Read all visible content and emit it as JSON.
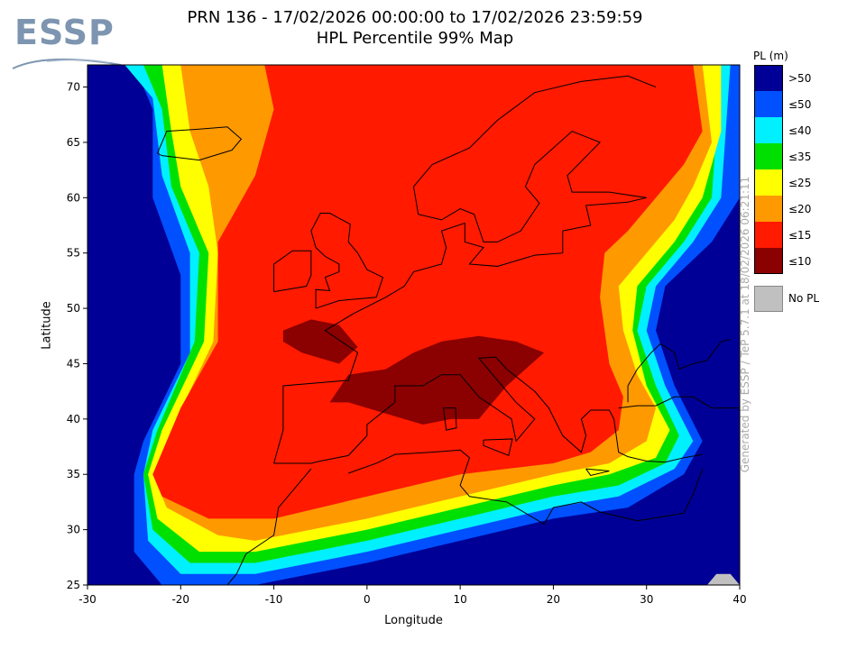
{
  "logo": {
    "text": "ESSP",
    "color": "#7d95b0"
  },
  "title": {
    "line1": "PRN 136 - 17/02/2026 00:00:00 to 17/02/2026 23:59:59",
    "line2": "HPL Percentile 99% Map"
  },
  "axes": {
    "xlabel": "Longitude",
    "ylabel": "Latitude",
    "xlim": [
      -30,
      40
    ],
    "ylim": [
      25,
      72
    ],
    "xticks": [
      -30,
      -20,
      -10,
      0,
      10,
      20,
      30,
      40
    ],
    "yticks": [
      25,
      30,
      35,
      40,
      45,
      50,
      55,
      60,
      65,
      70
    ]
  },
  "legend": {
    "title": "PL (m)",
    "items": [
      {
        "label": ">50",
        "color": "#000096"
      },
      {
        "label": "≤50",
        "color": "#0050ff"
      },
      {
        "label": "≤40",
        "color": "#00f0ff"
      },
      {
        "label": "≤35",
        "color": "#00e000"
      },
      {
        "label": "≤25",
        "color": "#ffff00"
      },
      {
        "label": "≤20",
        "color": "#ff9900"
      },
      {
        "label": "≤15",
        "color": "#ff1a00"
      },
      {
        "label": "≤10",
        "color": "#8b0000"
      }
    ],
    "no_pl": {
      "label": "No PL",
      "color": "#c0c0c0"
    }
  },
  "side_text": "Generated by ESSP / TeP 5.7.1 at 18/02/2026 06:21:11",
  "chart_data": {
    "type": "heatmap",
    "title": "PRN 136 - 17/02/2026 00:00:00 to 17/02/2026 23:59:59 / HPL Percentile 99% Map",
    "xlabel": "Longitude",
    "ylabel": "Latitude",
    "xlim": [
      -30,
      40
    ],
    "ylim": [
      25,
      72
    ],
    "value_bins_m": [
      ">50",
      "≤50",
      "≤40",
      "≤35",
      "≤25",
      "≤20",
      "≤15",
      "≤10"
    ],
    "regions": [
      {
        "level": "≤50",
        "polygon": [
          [
            -28,
            72
          ],
          [
            -25,
            72
          ],
          [
            -23,
            68
          ],
          [
            -23,
            60
          ],
          [
            -20,
            53
          ],
          [
            -20,
            45
          ],
          [
            -24,
            38
          ],
          [
            -25,
            35
          ],
          [
            -25,
            28
          ],
          [
            -22,
            25
          ],
          [
            -12,
            25
          ],
          [
            0,
            27
          ],
          [
            10,
            29
          ],
          [
            20,
            31
          ],
          [
            28,
            32
          ],
          [
            34,
            35
          ],
          [
            36,
            38
          ],
          [
            33,
            43
          ],
          [
            31,
            48
          ],
          [
            32,
            52
          ],
          [
            37,
            56
          ],
          [
            40,
            60
          ],
          [
            40,
            72
          ]
        ]
      },
      {
        "level": "≤40",
        "polygon": [
          [
            -26,
            72
          ],
          [
            -23,
            69
          ],
          [
            -22,
            62
          ],
          [
            -19,
            55
          ],
          [
            -19,
            46
          ],
          [
            -23,
            39
          ],
          [
            -24,
            35
          ],
          [
            -23.5,
            29
          ],
          [
            -20,
            26
          ],
          [
            -12,
            26
          ],
          [
            0,
            28
          ],
          [
            10,
            30
          ],
          [
            20,
            32
          ],
          [
            27,
            33
          ],
          [
            33,
            35.5
          ],
          [
            35,
            38
          ],
          [
            32,
            43
          ],
          [
            30,
            48
          ],
          [
            31,
            52
          ],
          [
            35,
            56
          ],
          [
            38,
            60
          ],
          [
            39,
            72
          ]
        ]
      },
      {
        "level": "≤35",
        "polygon": [
          [
            -24,
            72
          ],
          [
            -22,
            68
          ],
          [
            -21,
            61
          ],
          [
            -18,
            55
          ],
          [
            -18.5,
            47
          ],
          [
            -22.5,
            39
          ],
          [
            -24,
            35
          ],
          [
            -23,
            30
          ],
          [
            -19,
            27
          ],
          [
            -12,
            27
          ],
          [
            0,
            29
          ],
          [
            10,
            31
          ],
          [
            20,
            33
          ],
          [
            27,
            34
          ],
          [
            32,
            36
          ],
          [
            33.5,
            38.5
          ],
          [
            31,
            43
          ],
          [
            29,
            48
          ],
          [
            30,
            52
          ],
          [
            34,
            56
          ],
          [
            37,
            60
          ],
          [
            38,
            72
          ]
        ]
      },
      {
        "level": "≤25",
        "polygon": [
          [
            -22,
            72
          ],
          [
            -21,
            66
          ],
          [
            -20,
            61
          ],
          [
            -17,
            55
          ],
          [
            -17.5,
            47
          ],
          [
            -22,
            39
          ],
          [
            -23.5,
            35
          ],
          [
            -22.5,
            31
          ],
          [
            -18,
            28
          ],
          [
            -12,
            28
          ],
          [
            0,
            30
          ],
          [
            10,
            32
          ],
          [
            20,
            34
          ],
          [
            26,
            35
          ],
          [
            31,
            36.5
          ],
          [
            32.5,
            39
          ],
          [
            30,
            43
          ],
          [
            28.5,
            48
          ],
          [
            29,
            52
          ],
          [
            33,
            56
          ],
          [
            36,
            60
          ],
          [
            38,
            66
          ],
          [
            38,
            72
          ]
        ]
      },
      {
        "level": "≤20",
        "polygon": [
          [
            -20,
            72
          ],
          [
            -19,
            66
          ],
          [
            -17,
            61
          ],
          [
            -16,
            55
          ],
          [
            -16.5,
            47
          ],
          [
            -21,
            39
          ],
          [
            -23,
            35
          ],
          [
            -21.5,
            32
          ],
          [
            -16,
            29.5
          ],
          [
            -12,
            29
          ],
          [
            0,
            31
          ],
          [
            10,
            33
          ],
          [
            20,
            35
          ],
          [
            26,
            36
          ],
          [
            30,
            38
          ],
          [
            31,
            41
          ],
          [
            29,
            44
          ],
          [
            27.5,
            48
          ],
          [
            27,
            52
          ],
          [
            30,
            55
          ],
          [
            33,
            58
          ],
          [
            35,
            61
          ],
          [
            37,
            65
          ],
          [
            36,
            72
          ]
        ]
      },
      {
        "level": "≤15",
        "polygon": [
          [
            -11,
            72
          ],
          [
            -10,
            68
          ],
          [
            -12,
            62
          ],
          [
            -16,
            56
          ],
          [
            -16,
            47
          ],
          [
            -20,
            41
          ],
          [
            -23,
            35
          ],
          [
            -22,
            33
          ],
          [
            -17,
            31
          ],
          [
            -10,
            31
          ],
          [
            0,
            33
          ],
          [
            10,
            35
          ],
          [
            20,
            36
          ],
          [
            24,
            37
          ],
          [
            27,
            39
          ],
          [
            27.5,
            42
          ],
          [
            26,
            45
          ],
          [
            25.5,
            48
          ],
          [
            25,
            51
          ],
          [
            25.5,
            55
          ],
          [
            28,
            57
          ],
          [
            31,
            60
          ],
          [
            34,
            63
          ],
          [
            36,
            66
          ],
          [
            35,
            72
          ]
        ]
      },
      {
        "level": "≤10",
        "polygon": [
          [
            -9,
            48
          ],
          [
            -6,
            49
          ],
          [
            -3,
            48.5
          ],
          [
            -1,
            46.5
          ],
          [
            -3,
            45
          ],
          [
            -7,
            46
          ],
          [
            -9,
            47
          ]
        ]
      },
      {
        "level": "≤10",
        "polygon": [
          [
            -4,
            41.5
          ],
          [
            -2,
            44
          ],
          [
            2,
            44.5
          ],
          [
            5,
            46
          ],
          [
            8,
            47
          ],
          [
            12,
            47.5
          ],
          [
            16,
            47
          ],
          [
            19,
            46
          ],
          [
            15,
            43
          ],
          [
            12,
            40
          ],
          [
            9,
            40
          ],
          [
            6,
            39.5
          ],
          [
            2,
            40.5
          ],
          [
            -2,
            41.5
          ]
        ]
      }
    ],
    "no_pl_regions": [
      {
        "polygon": [
          [
            36.5,
            25
          ],
          [
            37.5,
            26
          ],
          [
            39,
            26
          ],
          [
            40,
            25
          ]
        ]
      }
    ]
  }
}
